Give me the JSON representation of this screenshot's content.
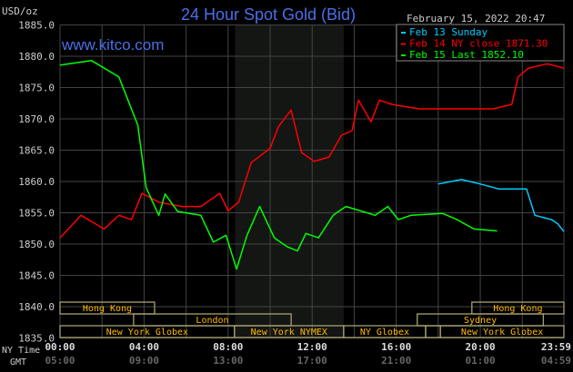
{
  "chart_data": {
    "type": "line",
    "title": "24 Hour Spot Gold (Bid)",
    "ylabel": "USD/oz",
    "timestamp": "February 15, 2022 20:47",
    "watermark": "www.kitco.com",
    "ylim": [
      1835,
      1885
    ],
    "yticks": [
      "1885.0",
      "1880.0",
      "1875.0",
      "1870.0",
      "1865.0",
      "1860.0",
      "1855.0",
      "1850.0",
      "1845.0",
      "1840.0",
      "1835.0"
    ],
    "xlim_hours": [
      0,
      23.98
    ],
    "x_row_labels": {
      "ny": "NY Time",
      "gmt": "GMT"
    },
    "xticks": [
      {
        "hour": 0,
        "ny": "00:00",
        "gmt": "05:00"
      },
      {
        "hour": 4,
        "ny": "04:00",
        "gmt": "09:00"
      },
      {
        "hour": 8,
        "ny": "08:00",
        "gmt": "13:00"
      },
      {
        "hour": 12,
        "ny": "12:00",
        "gmt": "17:00"
      },
      {
        "hour": 16,
        "ny": "16:00",
        "gmt": "21:00"
      },
      {
        "hour": 20,
        "ny": "20:00",
        "gmt": "01:00"
      },
      {
        "hour": 23.98,
        "ny": "23:59",
        "gmt": "04:59"
      }
    ],
    "grid": true,
    "shaded_session_hours": [
      8.33,
      13.5
    ],
    "legend_position": "top-right",
    "series": [
      {
        "name": "Feb 13 Sunday",
        "color": "#00ccff",
        "points": [
          [
            18,
            1859.6
          ],
          [
            19.1,
            1860.3
          ],
          [
            20,
            1859.6
          ],
          [
            20.9,
            1858.8
          ],
          [
            22.2,
            1858.8
          ],
          [
            22.6,
            1854.6
          ],
          [
            23.4,
            1853.9
          ],
          [
            23.7,
            1853.2
          ],
          [
            23.98,
            1852.0
          ]
        ]
      },
      {
        "name": "Feb 14 NY close 1871.30",
        "color": "#ff0000",
        "points": [
          [
            0,
            1851
          ],
          [
            1,
            1854.6
          ],
          [
            2.1,
            1852.4
          ],
          [
            2.8,
            1854.6
          ],
          [
            3.4,
            1853.9
          ],
          [
            3.9,
            1858.1
          ],
          [
            4.7,
            1856.7
          ],
          [
            5.8,
            1856
          ],
          [
            6.7,
            1856
          ],
          [
            7.6,
            1858.1
          ],
          [
            8,
            1855.3
          ],
          [
            8.5,
            1856.7
          ],
          [
            9.1,
            1863
          ],
          [
            10,
            1865.3
          ],
          [
            10.4,
            1868.8
          ],
          [
            11,
            1871.4
          ],
          [
            11.5,
            1864.6
          ],
          [
            12.1,
            1863.2
          ],
          [
            12.8,
            1863.9
          ],
          [
            13.4,
            1867.4
          ],
          [
            13.9,
            1868.1
          ],
          [
            14.2,
            1873
          ],
          [
            14.8,
            1869.5
          ],
          [
            15.2,
            1873
          ],
          [
            15.8,
            1872.3
          ],
          [
            17.1,
            1871.6
          ],
          [
            18.9,
            1871.6
          ],
          [
            20.6,
            1871.6
          ],
          [
            21.5,
            1872.3
          ],
          [
            21.8,
            1876.7
          ],
          [
            22.3,
            1878.1
          ],
          [
            23.2,
            1878.8
          ],
          [
            23.98,
            1878.1
          ]
        ]
      },
      {
        "name": "Feb 15 Last 1852.10",
        "color": "#00ff00",
        "points": [
          [
            0,
            1878.6
          ],
          [
            1.5,
            1879.3
          ],
          [
            2.8,
            1876.7
          ],
          [
            3.7,
            1869
          ],
          [
            4.1,
            1859
          ],
          [
            4.7,
            1854.6
          ],
          [
            5,
            1858
          ],
          [
            5.6,
            1855.2
          ],
          [
            6.7,
            1854.6
          ],
          [
            7.3,
            1850.3
          ],
          [
            7.9,
            1851.4
          ],
          [
            8.4,
            1846
          ],
          [
            8.9,
            1851.4
          ],
          [
            9.5,
            1856
          ],
          [
            10.2,
            1851
          ],
          [
            10.8,
            1849.6
          ],
          [
            11.3,
            1848.9
          ],
          [
            11.7,
            1851.7
          ],
          [
            12.3,
            1851
          ],
          [
            13,
            1854.6
          ],
          [
            13.6,
            1856
          ],
          [
            14.3,
            1855.3
          ],
          [
            15,
            1854.6
          ],
          [
            15.6,
            1856
          ],
          [
            16.1,
            1853.9
          ],
          [
            16.7,
            1854.6
          ],
          [
            18.2,
            1854.9
          ],
          [
            18.9,
            1853.9
          ],
          [
            19.7,
            1852.4
          ],
          [
            20.8,
            1852.1
          ]
        ]
      }
    ],
    "sessions": [
      {
        "label": "Hong Kong",
        "row": 0,
        "start": 0,
        "end": 4.5
      },
      {
        "label": "Hong Kong",
        "row": 0,
        "start": 19.6,
        "end": 23.98
      },
      {
        "label": "London",
        "row": 1,
        "start": 3.5,
        "end": 11
      },
      {
        "label": "Sydney",
        "row": 1,
        "start": 17,
        "end": 23
      },
      {
        "label": "New York Globex",
        "row": 2,
        "start": 0,
        "end": 8.3
      },
      {
        "label": "New York NYMEX",
        "row": 2,
        "start": 8.3,
        "end": 13.5
      },
      {
        "label": "NY Globex",
        "row": 2,
        "start": 13.5,
        "end": 17.4
      },
      {
        "label": "",
        "row": 2,
        "start": 17.4,
        "end": 18.1
      },
      {
        "label": "New York Globex",
        "row": 2,
        "start": 18.1,
        "end": 23.98
      }
    ]
  }
}
